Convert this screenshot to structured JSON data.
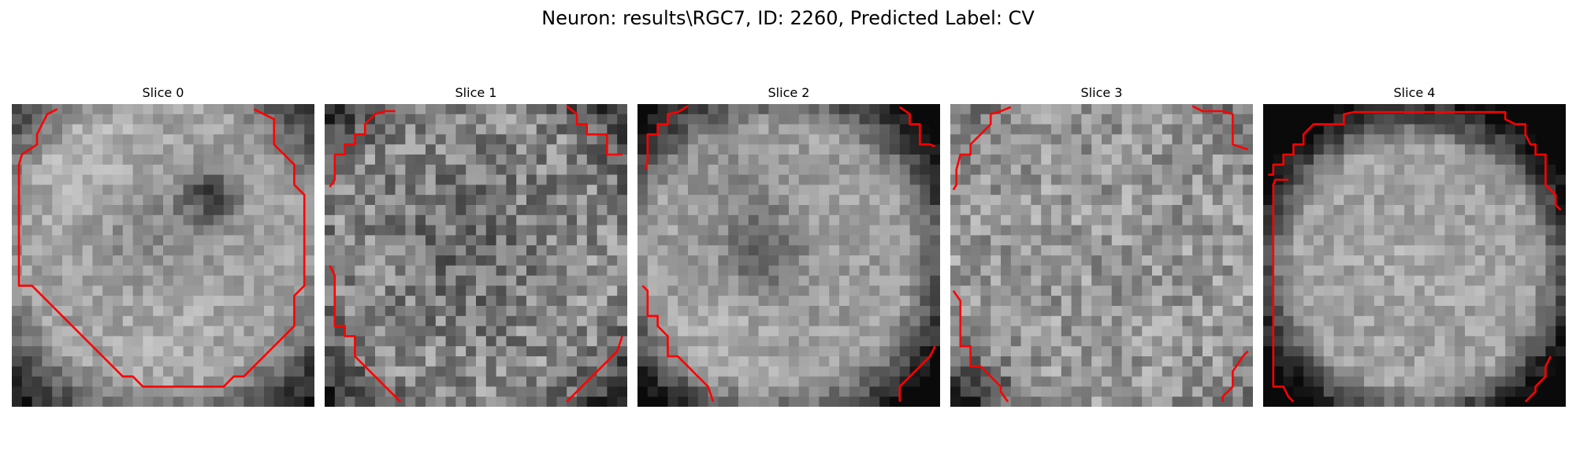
{
  "figure": {
    "title": "Neuron: results\\RGC7, ID: 2260, Predicted Label: CV"
  },
  "panels": [
    {
      "title": "Slice 0"
    },
    {
      "title": "Slice 1"
    },
    {
      "title": "Slice 2"
    },
    {
      "title": "Slice 3"
    },
    {
      "title": "Slice 4"
    }
  ],
  "colors": {
    "contour": "#ff0000",
    "background": "#ffffff"
  },
  "colormap": "gray"
}
